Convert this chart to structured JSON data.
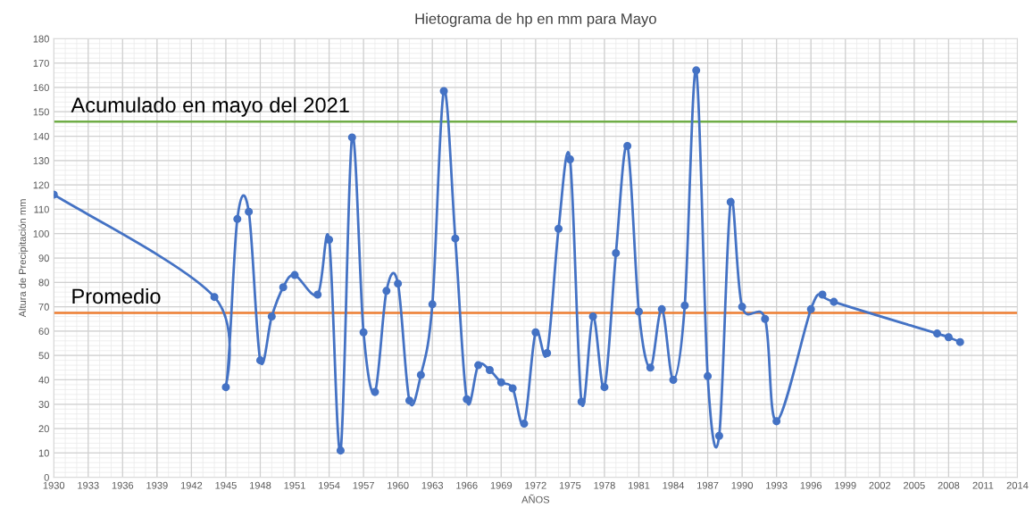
{
  "chart_data": {
    "type": "line",
    "title": "Hietograma de hp en mm para Mayo",
    "xlabel": "AÑOS",
    "ylabel": "Altura de Precipitación mm",
    "x": [
      1930,
      1944,
      1945,
      1946,
      1947,
      1948,
      1949,
      1950,
      1951,
      1953,
      1954,
      1955,
      1956,
      1957,
      1958,
      1959,
      1960,
      1961,
      1962,
      1963,
      1964,
      1965,
      1966,
      1967,
      1968,
      1969,
      1970,
      1971,
      1972,
      1973,
      1974,
      1975,
      1976,
      1977,
      1978,
      1979,
      1980,
      1981,
      1982,
      1983,
      1984,
      1985,
      1986,
      1987,
      1988,
      1989,
      1990,
      1992,
      1993,
      1996,
      1997,
      1998,
      2007,
      2008,
      2009
    ],
    "series": [
      {
        "color": "#4472c4",
        "values": [
          116,
          74,
          37,
          106,
          109,
          48,
          66,
          78,
          83,
          75,
          97.5,
          11,
          139.5,
          59.5,
          35,
          76.5,
          79.5,
          31.5,
          42,
          71,
          158.5,
          98,
          32,
          46,
          44,
          39,
          36.5,
          22,
          59.5,
          51,
          102,
          130.5,
          31,
          66,
          37,
          92,
          136,
          68,
          45,
          69,
          40,
          70.5,
          167,
          41.5,
          17,
          113,
          70,
          65,
          23,
          69,
          75,
          72,
          59,
          57.5,
          55.5
        ]
      }
    ],
    "xlim": [
      1930,
      2014
    ],
    "xticks": [
      1930,
      1933,
      1936,
      1939,
      1942,
      1945,
      1948,
      1951,
      1954,
      1957,
      1960,
      1963,
      1966,
      1969,
      1972,
      1975,
      1978,
      1981,
      1984,
      1987,
      1990,
      1993,
      1996,
      1999,
      2002,
      2005,
      2008,
      2011,
      2014
    ],
    "ylim": [
      0,
      180
    ],
    "yticks": [
      0,
      10,
      20,
      30,
      40,
      50,
      60,
      70,
      80,
      90,
      100,
      110,
      120,
      130,
      140,
      150,
      160,
      170,
      180
    ],
    "ref_lines": [
      {
        "axis": "y",
        "value": 146,
        "label": "Acumulado en mayo del 2021",
        "color": "#70ad47"
      },
      {
        "axis": "y",
        "value": 67.5,
        "label": "Promedio",
        "color": "#ed7d31"
      }
    ],
    "grid": true,
    "legend": false,
    "marker": "circle",
    "line_style": "solid"
  }
}
